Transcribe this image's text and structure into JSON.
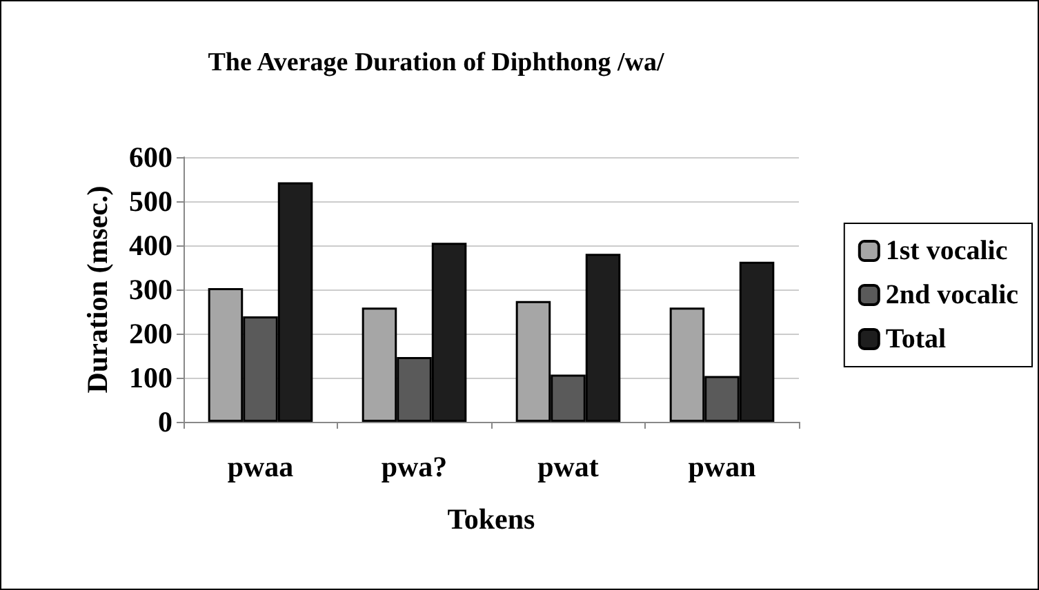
{
  "chart_data": {
    "type": "bar",
    "title": "The Average Duration of Diphthong /wa/",
    "xlabel": "Tokens",
    "ylabel": "Duration (msec.)",
    "categories": [
      "pwaa",
      "pwa?",
      "pwat",
      "pwan"
    ],
    "series": [
      {
        "name": "1st vocalic",
        "color": "#a6a6a6",
        "values": [
          303,
          259,
          274,
          259
        ]
      },
      {
        "name": "2nd vocalic",
        "color": "#5a5a5a",
        "values": [
          239,
          147,
          107,
          104
        ]
      },
      {
        "name": "Total",
        "color": "#1e1e1e",
        "values": [
          543,
          406,
          381,
          363
        ]
      }
    ],
    "ylim": [
      0,
      600
    ],
    "yticks": [
      0,
      100,
      200,
      300,
      400,
      500,
      600
    ],
    "grid": "y",
    "legend": "right"
  }
}
